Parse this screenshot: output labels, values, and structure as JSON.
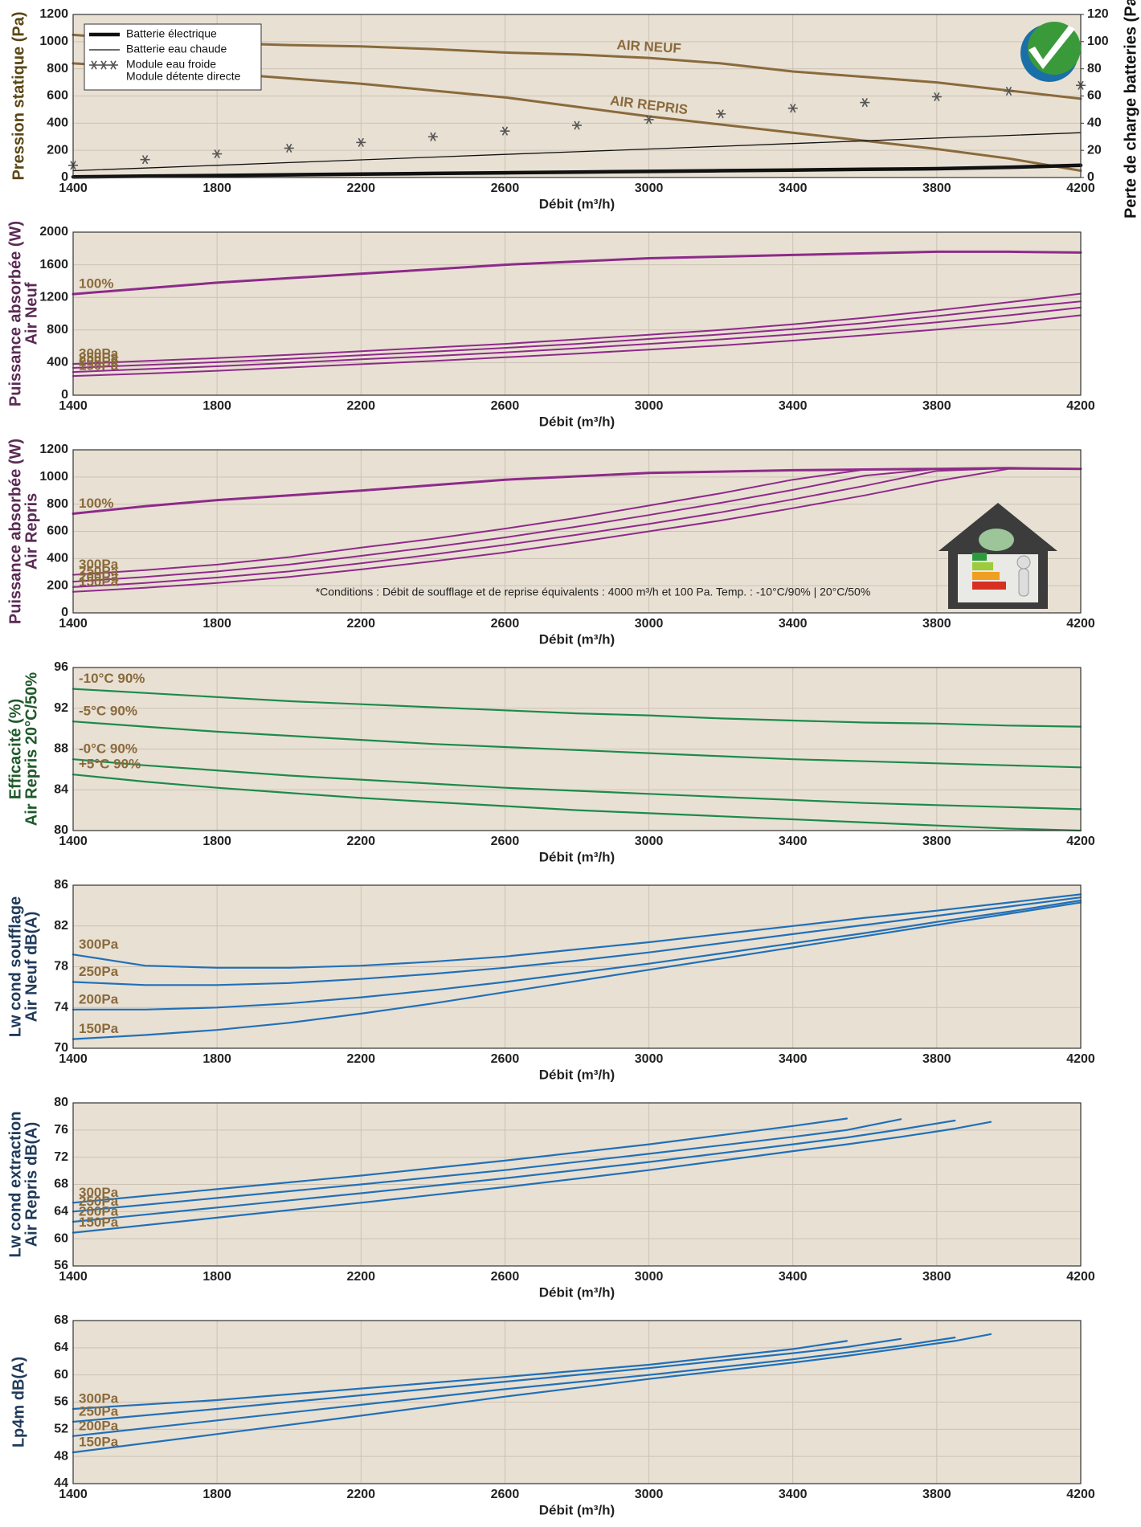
{
  "chart_data": [
    {
      "type": "line",
      "ylabel": [
        "Pression statique (Pa)"
      ],
      "ylabel_color": "#5a4614",
      "y2label": "Perte de charge batteries (Pa)",
      "xlabel": "Débit (m³/h)",
      "x": [
        1400,
        1600,
        1800,
        2000,
        2200,
        2400,
        2600,
        2800,
        3000,
        3200,
        3400,
        3600,
        3800,
        4000,
        4200
      ],
      "xlim": [
        1400,
        4200
      ],
      "xticks": [
        1400,
        1800,
        2200,
        2600,
        3000,
        3400,
        3800,
        4200
      ],
      "ylim": [
        0,
        1200
      ],
      "yticks": [
        0,
        200,
        400,
        600,
        800,
        1000,
        1200
      ],
      "y2lim": [
        0,
        120
      ],
      "y2ticks": [
        0,
        20,
        40,
        60,
        80,
        100,
        120
      ],
      "grid": true,
      "legend": "upper left",
      "legend_note": "Module détente directe",
      "label_color": "#8a6a3c",
      "series": [
        {
          "name": "AIR NEUF",
          "color": "#8a6a3c",
          "line_width": 3,
          "label_style": "inline",
          "values": [
            1050,
            1010,
            990,
            975,
            965,
            945,
            920,
            905,
            880,
            840,
            780,
            740,
            700,
            640,
            580
          ]
        },
        {
          "name": "AIR REPRIS",
          "color": "#8a6a3c",
          "line_width": 3,
          "label_style": "inline",
          "values": [
            840,
            810,
            770,
            730,
            690,
            640,
            590,
            520,
            450,
            390,
            330,
            270,
            210,
            140,
            50
          ]
        },
        {
          "name": "Batterie électrique",
          "color": "#111111",
          "line_width": 4.5,
          "label_style": "legend",
          "axis": "y2",
          "values": [
            0.5,
            1,
            1.5,
            2,
            2.5,
            3,
            3.5,
            4,
            4.5,
            5,
            5.5,
            6,
            6.5,
            7.5,
            9
          ]
        },
        {
          "name": "Batterie eau chaude",
          "color": "#111111",
          "line_width": 1.3,
          "label_style": "legend",
          "axis": "y2",
          "values": [
            5,
            7,
            9,
            11,
            13,
            15,
            17,
            19,
            21,
            23,
            25,
            27,
            29,
            31,
            33
          ]
        },
        {
          "name": "Module eau froide",
          "color": "#555555",
          "marker": "snowflake",
          "label_style": "legend",
          "axis": "y2",
          "values": [
            9,
            13.2,
            17.4,
            21.6,
            25.8,
            30,
            34.2,
            38.4,
            42.6,
            46.8,
            51,
            55.2,
            59.4,
            63.6,
            67.8
          ]
        }
      ]
    },
    {
      "type": "line",
      "ylabel": [
        "Puissance absorbée (W)",
        "Air Neuf"
      ],
      "ylabel_color": "#5b2a55",
      "xlabel": "Débit (m³/h)",
      "x": [
        1400,
        1600,
        1800,
        2000,
        2200,
        2400,
        2600,
        2800,
        3000,
        3200,
        3400,
        3600,
        3800,
        4000,
        4200
      ],
      "xlim": [
        1400,
        4200
      ],
      "xticks": [
        1400,
        1800,
        2200,
        2600,
        3000,
        3400,
        3800,
        4200
      ],
      "ylim": [
        0,
        2000
      ],
      "yticks": [
        0,
        400,
        800,
        1200,
        1600,
        2000
      ],
      "grid": true,
      "label_color": "#8a6a3c",
      "series": [
        {
          "name": "100%",
          "color": "#8e2a8a",
          "line_width": 3,
          "label_style": "start",
          "values": [
            1240,
            1310,
            1380,
            1435,
            1490,
            1545,
            1600,
            1640,
            1680,
            1700,
            1720,
            1740,
            1760,
            1760,
            1750
          ]
        },
        {
          "name": "300Pa",
          "color": "#8e2a8a",
          "line_width": 2,
          "label_style": "start",
          "values": [
            383,
            420,
            455,
            495,
            540,
            585,
            630,
            685,
            742,
            800,
            870,
            950,
            1040,
            1140,
            1245
          ]
        },
        {
          "name": "250Pa",
          "color": "#8e2a8a",
          "line_width": 2,
          "label_style": "start",
          "values": [
            335,
            370,
            405,
            445,
            490,
            535,
            580,
            630,
            690,
            745,
            810,
            885,
            970,
            1065,
            1150
          ]
        },
        {
          "name": "200Pa",
          "color": "#8e2a8a",
          "line_width": 2,
          "label_style": "start",
          "values": [
            285,
            320,
            355,
            395,
            440,
            480,
            525,
            575,
            630,
            685,
            745,
            815,
            895,
            980,
            1075
          ]
        },
        {
          "name": "150Pa",
          "color": "#8e2a8a",
          "line_width": 2,
          "label_style": "start",
          "values": [
            235,
            265,
            300,
            340,
            380,
            420,
            465,
            510,
            560,
            610,
            670,
            735,
            805,
            885,
            980
          ]
        }
      ]
    },
    {
      "type": "line",
      "ylabel": [
        "Puissance absorbée (W)",
        "Air Repris"
      ],
      "ylabel_color": "#5b2a55",
      "xlabel": "Débit (m³/h)",
      "note": "*Conditions : Débit de soufflage et de reprise équivalents : 4000 m³/h et 100 Pa. Temp. : -10°C/90% | 20°C/50%",
      "x": [
        1400,
        1600,
        1800,
        2000,
        2200,
        2400,
        2600,
        2800,
        3000,
        3200,
        3400,
        3600,
        3800,
        4000,
        4200
      ],
      "xlim": [
        1400,
        4200
      ],
      "xticks": [
        1400,
        1800,
        2200,
        2600,
        3000,
        3400,
        3800,
        4200
      ],
      "ylim": [
        0,
        1200
      ],
      "yticks": [
        0,
        200,
        400,
        600,
        800,
        1000,
        1200
      ],
      "grid": true,
      "label_color": "#8a6a3c",
      "series": [
        {
          "name": "100%",
          "color": "#8e2a8a",
          "line_width": 3,
          "label_style": "start",
          "values": [
            730,
            785,
            830,
            865,
            900,
            940,
            980,
            1005,
            1030,
            1040,
            1050,
            1055,
            1060,
            1065,
            1060
          ]
        },
        {
          "name": "300Pa",
          "color": "#8e2a8a",
          "line_width": 2,
          "label_style": "start",
          "values": [
            280,
            315,
            355,
            410,
            480,
            545,
            620,
            700,
            790,
            880,
            980,
            1055,
            1060,
            1065,
            1060
          ]
        },
        {
          "name": "250Pa",
          "color": "#8e2a8a",
          "line_width": 2,
          "label_style": "start",
          "values": [
            230,
            265,
            305,
            355,
            420,
            485,
            555,
            635,
            720,
            810,
            905,
            1010,
            1060,
            1065,
            1060
          ]
        },
        {
          "name": "200Pa",
          "color": "#8e2a8a",
          "line_width": 2,
          "label_style": "start",
          "values": [
            190,
            220,
            260,
            305,
            365,
            430,
            500,
            575,
            655,
            740,
            835,
            935,
            1045,
            1065,
            1060
          ]
        },
        {
          "name": "150Pa",
          "color": "#8e2a8a",
          "line_width": 2,
          "label_style": "start",
          "values": [
            155,
            185,
            220,
            265,
            320,
            380,
            445,
            520,
            600,
            680,
            770,
            865,
            970,
            1060,
            1060
          ]
        }
      ]
    },
    {
      "type": "line",
      "ylabel": [
        "Efficacité (%)",
        "Air Repris 20°C/50%"
      ],
      "ylabel_color": "#1f5a2a",
      "xlabel": "Débit (m³/h)",
      "x": [
        1400,
        1600,
        1800,
        2000,
        2200,
        2400,
        2600,
        2800,
        3000,
        3200,
        3400,
        3600,
        3800,
        4000,
        4200
      ],
      "xlim": [
        1400,
        4200
      ],
      "xticks": [
        1400,
        1800,
        2200,
        2600,
        3000,
        3400,
        3800,
        4200
      ],
      "ylim": [
        80,
        96
      ],
      "yticks": [
        80,
        84,
        88,
        92,
        96
      ],
      "grid": true,
      "label_color": "#8a6a3c",
      "series": [
        {
          "name": "-10°C 90%",
          "color": "#1d8a4c",
          "line_width": 2.2,
          "label_style": "start",
          "values": [
            93.9,
            93.5,
            93.1,
            92.7,
            92.4,
            92.1,
            91.8,
            91.5,
            91.3,
            91.0,
            90.8,
            90.6,
            90.5,
            90.3,
            90.2
          ]
        },
        {
          "name": "-5°C 90%",
          "color": "#1d8a4c",
          "line_width": 2.2,
          "label_style": "start",
          "values": [
            90.7,
            90.2,
            89.7,
            89.3,
            88.9,
            88.5,
            88.2,
            87.9,
            87.6,
            87.3,
            87.0,
            86.8,
            86.6,
            86.4,
            86.2
          ]
        },
        {
          "name": "-0°C 90%",
          "color": "#1d8a4c",
          "line_width": 2.2,
          "label_style": "start",
          "values": [
            87.0,
            86.4,
            85.9,
            85.4,
            85.0,
            84.6,
            84.2,
            83.9,
            83.6,
            83.3,
            83.0,
            82.7,
            82.5,
            82.3,
            82.1
          ]
        },
        {
          "name": "+5°C 90%",
          "color": "#1d8a4c",
          "line_width": 2.2,
          "label_style": "start",
          "values": [
            85.5,
            84.8,
            84.2,
            83.7,
            83.2,
            82.8,
            82.4,
            82.0,
            81.7,
            81.4,
            81.1,
            80.8,
            80.5,
            80.2,
            80.0
          ]
        }
      ]
    },
    {
      "type": "line",
      "ylabel": [
        "Lw cond soufflage",
        "Air Neuf dB(A)"
      ],
      "ylabel_color": "#1f3a5a",
      "xlabel": "Débit (m³/h)",
      "x": [
        1400,
        1600,
        1800,
        2000,
        2200,
        2400,
        2600,
        2800,
        3000,
        3200,
        3400,
        3600,
        3800,
        4000,
        4200
      ],
      "xlim": [
        1400,
        4200
      ],
      "xticks": [
        1400,
        1800,
        2200,
        2600,
        3000,
        3400,
        3800,
        4200
      ],
      "ylim": [
        70,
        86
      ],
      "yticks": [
        70,
        74,
        78,
        82,
        86
      ],
      "grid": true,
      "label_color": "#8a6a3c",
      "series": [
        {
          "name": "300Pa",
          "color": "#2070b8",
          "line_width": 2.2,
          "label_style": "start",
          "values": [
            79.2,
            78.1,
            77.9,
            77.9,
            78.1,
            78.5,
            79.0,
            79.7,
            80.4,
            81.2,
            82.0,
            82.8,
            83.5,
            84.3,
            85.1
          ]
        },
        {
          "name": "250Pa",
          "color": "#2070b8",
          "line_width": 2.2,
          "label_style": "start",
          "values": [
            76.5,
            76.2,
            76.2,
            76.4,
            76.8,
            77.3,
            77.9,
            78.6,
            79.4,
            80.3,
            81.2,
            82.1,
            83.0,
            83.9,
            84.8
          ]
        },
        {
          "name": "200Pa",
          "color": "#2070b8",
          "line_width": 2.2,
          "label_style": "start",
          "values": [
            73.8,
            73.8,
            74.0,
            74.4,
            75.0,
            75.7,
            76.5,
            77.4,
            78.3,
            79.3,
            80.3,
            81.3,
            82.4,
            83.4,
            84.5
          ]
        },
        {
          "name": "150Pa",
          "color": "#2070b8",
          "line_width": 2.2,
          "label_style": "start",
          "values": [
            70.9,
            71.3,
            71.8,
            72.5,
            73.4,
            74.4,
            75.5,
            76.6,
            77.7,
            78.8,
            79.9,
            81.0,
            82.1,
            83.2,
            84.3
          ]
        }
      ]
    },
    {
      "type": "line",
      "ylabel": [
        "Lw cond extraction",
        "Air Repris dB(A)"
      ],
      "ylabel_color": "#1f3a5a",
      "xlabel": "Débit (m³/h)",
      "x": [
        1400,
        1800,
        2200,
        2600,
        3000,
        3400,
        3550,
        3700,
        3850,
        3950
      ],
      "xlim": [
        1400,
        4200
      ],
      "xticks": [
        1400,
        1800,
        2200,
        2600,
        3000,
        3400,
        3800,
        4200
      ],
      "ylim": [
        56,
        80
      ],
      "yticks": [
        56,
        60,
        64,
        68,
        72,
        76,
        80
      ],
      "grid": true,
      "label_color": "#8a6a3c",
      "series": [
        {
          "name": "300Pa",
          "color": "#2070b8",
          "line_width": 2.2,
          "label_style": "start",
          "values": [
            65.3,
            67.3,
            69.3,
            71.5,
            73.9,
            76.6,
            77.7,
            null,
            null,
            null
          ]
        },
        {
          "name": "250Pa",
          "color": "#2070b8",
          "line_width": 2.2,
          "label_style": "start",
          "values": [
            64.0,
            66.0,
            68.0,
            70.1,
            72.5,
            75.0,
            76.0,
            77.6,
            null,
            null
          ]
        },
        {
          "name": "200Pa",
          "color": "#2070b8",
          "line_width": 2.2,
          "label_style": "start",
          "values": [
            62.5,
            64.6,
            66.7,
            68.9,
            71.3,
            73.9,
            74.9,
            76.1,
            77.4,
            null
          ]
        },
        {
          "name": "150Pa",
          "color": "#2070b8",
          "line_width": 2.2,
          "label_style": "start",
          "values": [
            60.9,
            63.1,
            65.3,
            67.6,
            70.1,
            72.9,
            73.9,
            75.0,
            76.2,
            77.2
          ]
        }
      ]
    },
    {
      "type": "line",
      "ylabel": [
        "Lp4m dB(A)"
      ],
      "ylabel_color": "#1f3a5a",
      "xlabel": "Débit (m³/h)",
      "x": [
        1400,
        1800,
        2200,
        2600,
        3000,
        3400,
        3550,
        3700,
        3850,
        3950
      ],
      "xlim": [
        1400,
        4200
      ],
      "xticks": [
        1400,
        1800,
        2200,
        2600,
        3000,
        3400,
        3800,
        4200
      ],
      "ylim": [
        44,
        68
      ],
      "yticks": [
        44,
        48,
        52,
        56,
        60,
        64,
        68
      ],
      "grid": true,
      "label_color": "#8a6a3c",
      "series": [
        {
          "name": "300Pa",
          "color": "#2070b8",
          "line_width": 2.2,
          "label_style": "start",
          "values": [
            55.0,
            56.3,
            58.0,
            59.7,
            61.5,
            63.8,
            65.0,
            null,
            null,
            null
          ]
        },
        {
          "name": "250Pa",
          "color": "#2070b8",
          "line_width": 2.2,
          "label_style": "start",
          "values": [
            53.1,
            55.0,
            57.0,
            59.0,
            61.0,
            63.2,
            64.1,
            65.3,
            null,
            null
          ]
        },
        {
          "name": "200Pa",
          "color": "#2070b8",
          "line_width": 2.2,
          "label_style": "start",
          "values": [
            51.0,
            53.3,
            55.6,
            57.9,
            60.0,
            62.3,
            63.3,
            64.3,
            65.5,
            null
          ]
        },
        {
          "name": "150Pa",
          "color": "#2070b8",
          "line_width": 2.2,
          "label_style": "start",
          "values": [
            48.6,
            51.3,
            54.0,
            56.8,
            59.4,
            61.8,
            62.8,
            63.9,
            65.0,
            66.0
          ]
        }
      ]
    }
  ]
}
